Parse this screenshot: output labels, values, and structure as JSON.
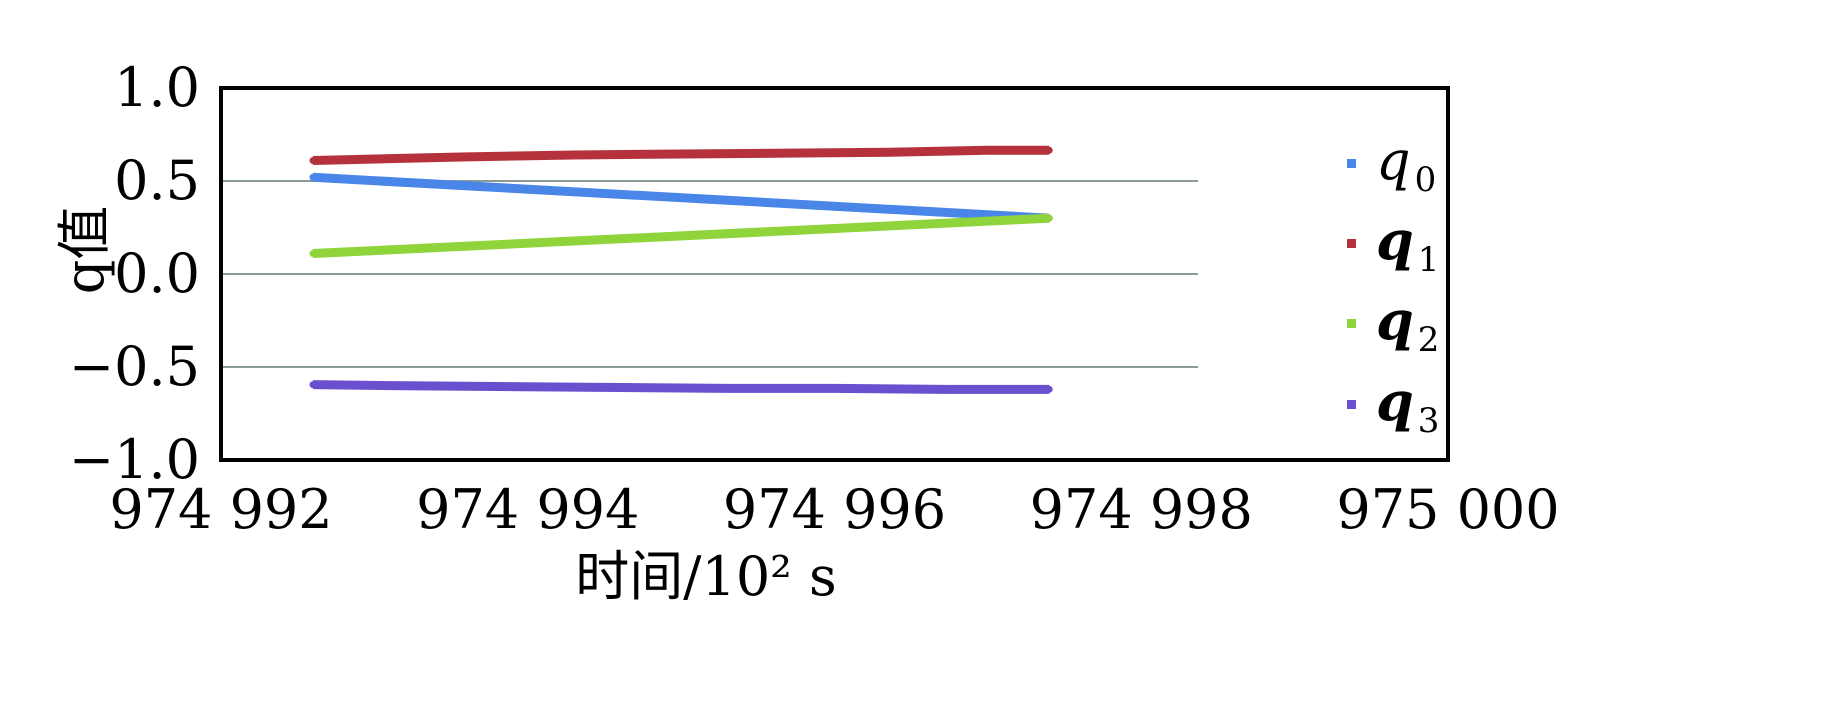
{
  "chart_data": {
    "type": "line",
    "title": "",
    "xlabel": "时间/10² s",
    "ylabel": "q值",
    "x_ticks": [
      "974 992",
      "974 994",
      "974 996",
      "974 998",
      "975 000"
    ],
    "x_tick_values": [
      974992,
      974994,
      974996,
      974998,
      975000
    ],
    "y_ticks": [
      "1.0",
      "0.5",
      "0.0",
      "−0.5",
      "−1.0"
    ],
    "y_tick_values": [
      1.0,
      0.5,
      0.0,
      -0.5,
      -1.0
    ],
    "xlim": [
      974992,
      975000
    ],
    "ylim": [
      -1.0,
      1.0
    ],
    "grid": "horizontal",
    "legend_position": "right",
    "series": [
      {
        "name": "q0",
        "label_main": "q",
        "label_sub": "0",
        "bold": false,
        "color": "#4a86e8",
        "x": [
          974992.6,
          974997.4
        ],
        "y": [
          0.52,
          0.3
        ]
      },
      {
        "name": "q1",
        "label_main": "q",
        "label_sub": "1",
        "bold": true,
        "color": "#b5313c",
        "x": [
          974992.6,
          974993.1,
          974993.6,
          974994.3,
          974995.0,
          974995.7,
          974996.4,
          974997.0,
          974997.4
        ],
        "y": [
          0.61,
          0.62,
          0.63,
          0.64,
          0.645,
          0.65,
          0.655,
          0.665,
          0.665
        ]
      },
      {
        "name": "q2",
        "label_main": "q",
        "label_sub": "2",
        "bold": true,
        "color": "#8fd43a",
        "x": [
          974992.6,
          974997.4
        ],
        "y": [
          0.11,
          0.3
        ]
      },
      {
        "name": "q3",
        "label_main": "q",
        "label_sub": "3",
        "bold": true,
        "color": "#6a4fcf",
        "x": [
          974992.6,
          974993.1,
          974993.8,
          974994.6,
          974995.3,
          974996.0,
          974996.7,
          974997.4
        ],
        "y": [
          -0.595,
          -0.6,
          -0.605,
          -0.61,
          -0.615,
          -0.615,
          -0.62,
          -0.62
        ]
      }
    ]
  }
}
